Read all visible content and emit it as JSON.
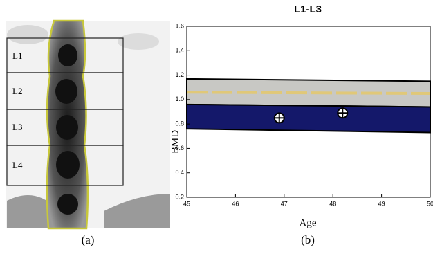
{
  "scan": {
    "labels": [
      "L1",
      "L2",
      "L3",
      "L4"
    ],
    "caption": "(a)"
  },
  "chart_data": {
    "type": "scatter",
    "title": "L1-L3",
    "xlabel": "Age",
    "ylabel": "BMD",
    "caption": "(b)",
    "x": [
      46.9,
      48.2
    ],
    "values": [
      0.85,
      0.89
    ],
    "color": "#ffffff",
    "bands": [
      {
        "color": "#c8c8c4",
        "x": [
          45,
          50
        ],
        "upper": [
          1.17,
          1.15
        ],
        "lower": [
          0.96,
          0.94
        ]
      },
      {
        "color": "#14186a",
        "x": [
          45,
          50
        ],
        "upper": [
          0.96,
          0.94
        ],
        "lower": [
          0.76,
          0.73
        ]
      }
    ],
    "mean_line": {
      "color": "#e0c878",
      "x": [
        45,
        50
      ],
      "values": [
        1.06,
        1.05
      ]
    },
    "xlim": [
      45,
      50
    ],
    "xticks": [
      45,
      46,
      47,
      48,
      49,
      50
    ],
    "ylim": [
      0.2,
      1.6
    ],
    "yticks": [
      0.2,
      0.4,
      0.6,
      0.8,
      {
        "value": 1,
        "label": "1.0"
      },
      1.2,
      1.4,
      1.6
    ]
  }
}
